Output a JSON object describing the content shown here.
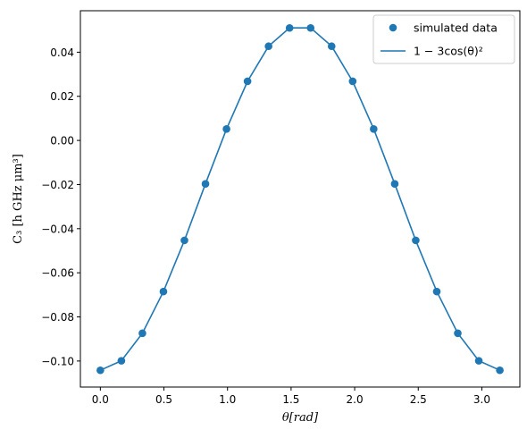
{
  "chart_data": {
    "type": "scatter",
    "xlabel": "θ[rad]",
    "ylabel": "C₃ [h GHz μm³]",
    "xlim": [
      -0.157,
      3.299
    ],
    "ylim": [
      -0.1118,
      0.0588
    ],
    "xticks": [
      0.0,
      0.5,
      1.0,
      1.5,
      2.0,
      2.5,
      3.0
    ],
    "xtick_labels": [
      "0.0",
      "0.5",
      "1.0",
      "1.5",
      "2.0",
      "2.5",
      "3.0"
    ],
    "yticks": [
      -0.1,
      -0.08,
      -0.06,
      -0.04,
      -0.02,
      0.0,
      0.02,
      0.04
    ],
    "ytick_labels": [
      "−0.10",
      "−0.08",
      "−0.06",
      "−0.04",
      "−0.02",
      "0.00",
      "0.02",
      "0.04"
    ],
    "grid": false,
    "legend_position": "top-right",
    "series": [
      {
        "name": "simulated data",
        "kind": "scatter",
        "color": "#1f77b4",
        "x": [
          0.0,
          0.1653,
          0.3307,
          0.496,
          0.6614,
          0.8267,
          0.9921,
          1.1574,
          1.3228,
          1.4881,
          1.6535,
          1.8188,
          1.9842,
          2.1495,
          2.3149,
          2.4802,
          2.6456,
          2.8109,
          2.9762,
          3.1416
        ],
        "y": [
          -0.1042,
          -0.0999,
          -0.0874,
          -0.0685,
          -0.0453,
          -0.0197,
          0.0052,
          0.0268,
          0.0427,
          0.051,
          0.051,
          0.0427,
          0.0268,
          0.0052,
          -0.0197,
          -0.0453,
          -0.0685,
          -0.0874,
          -0.0999,
          -0.1042
        ]
      },
      {
        "name": "1 − 3cos(θ)²",
        "kind": "line",
        "color": "#1f77b4",
        "x": [
          0.0,
          0.1653,
          0.3307,
          0.496,
          0.6614,
          0.8267,
          0.9921,
          1.1574,
          1.3228,
          1.4881,
          1.6535,
          1.8188,
          1.9842,
          2.1495,
          2.3149,
          2.4802,
          2.6456,
          2.8109,
          2.9762,
          3.1416
        ],
        "y": [
          -0.1042,
          -0.0999,
          -0.0874,
          -0.0685,
          -0.0453,
          -0.0197,
          0.0052,
          0.0268,
          0.0427,
          0.051,
          0.051,
          0.0427,
          0.0268,
          0.0052,
          -0.0197,
          -0.0453,
          -0.0685,
          -0.0874,
          -0.0999,
          -0.1042
        ]
      }
    ]
  }
}
